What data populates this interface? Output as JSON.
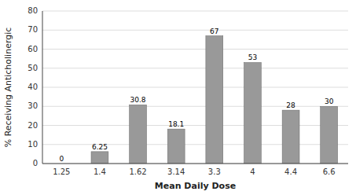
{
  "chart_data": {
    "type": "bar",
    "categories": [
      "1.25",
      "1.4",
      "1.62",
      "3.14",
      "3.3",
      "4",
      "4.4",
      "6.6"
    ],
    "values": [
      0,
      6.25,
      30.8,
      18.1,
      67,
      53,
      28,
      30
    ],
    "color": "#999999",
    "xlabel": "Mean Daily Dose",
    "ylabel": "% Receiving Anticholinergic",
    "ylim": [
      0,
      80
    ],
    "yticks": [
      0,
      10,
      20,
      30,
      40,
      50,
      60,
      70,
      80
    ],
    "grid": true,
    "data_labels": true
  }
}
